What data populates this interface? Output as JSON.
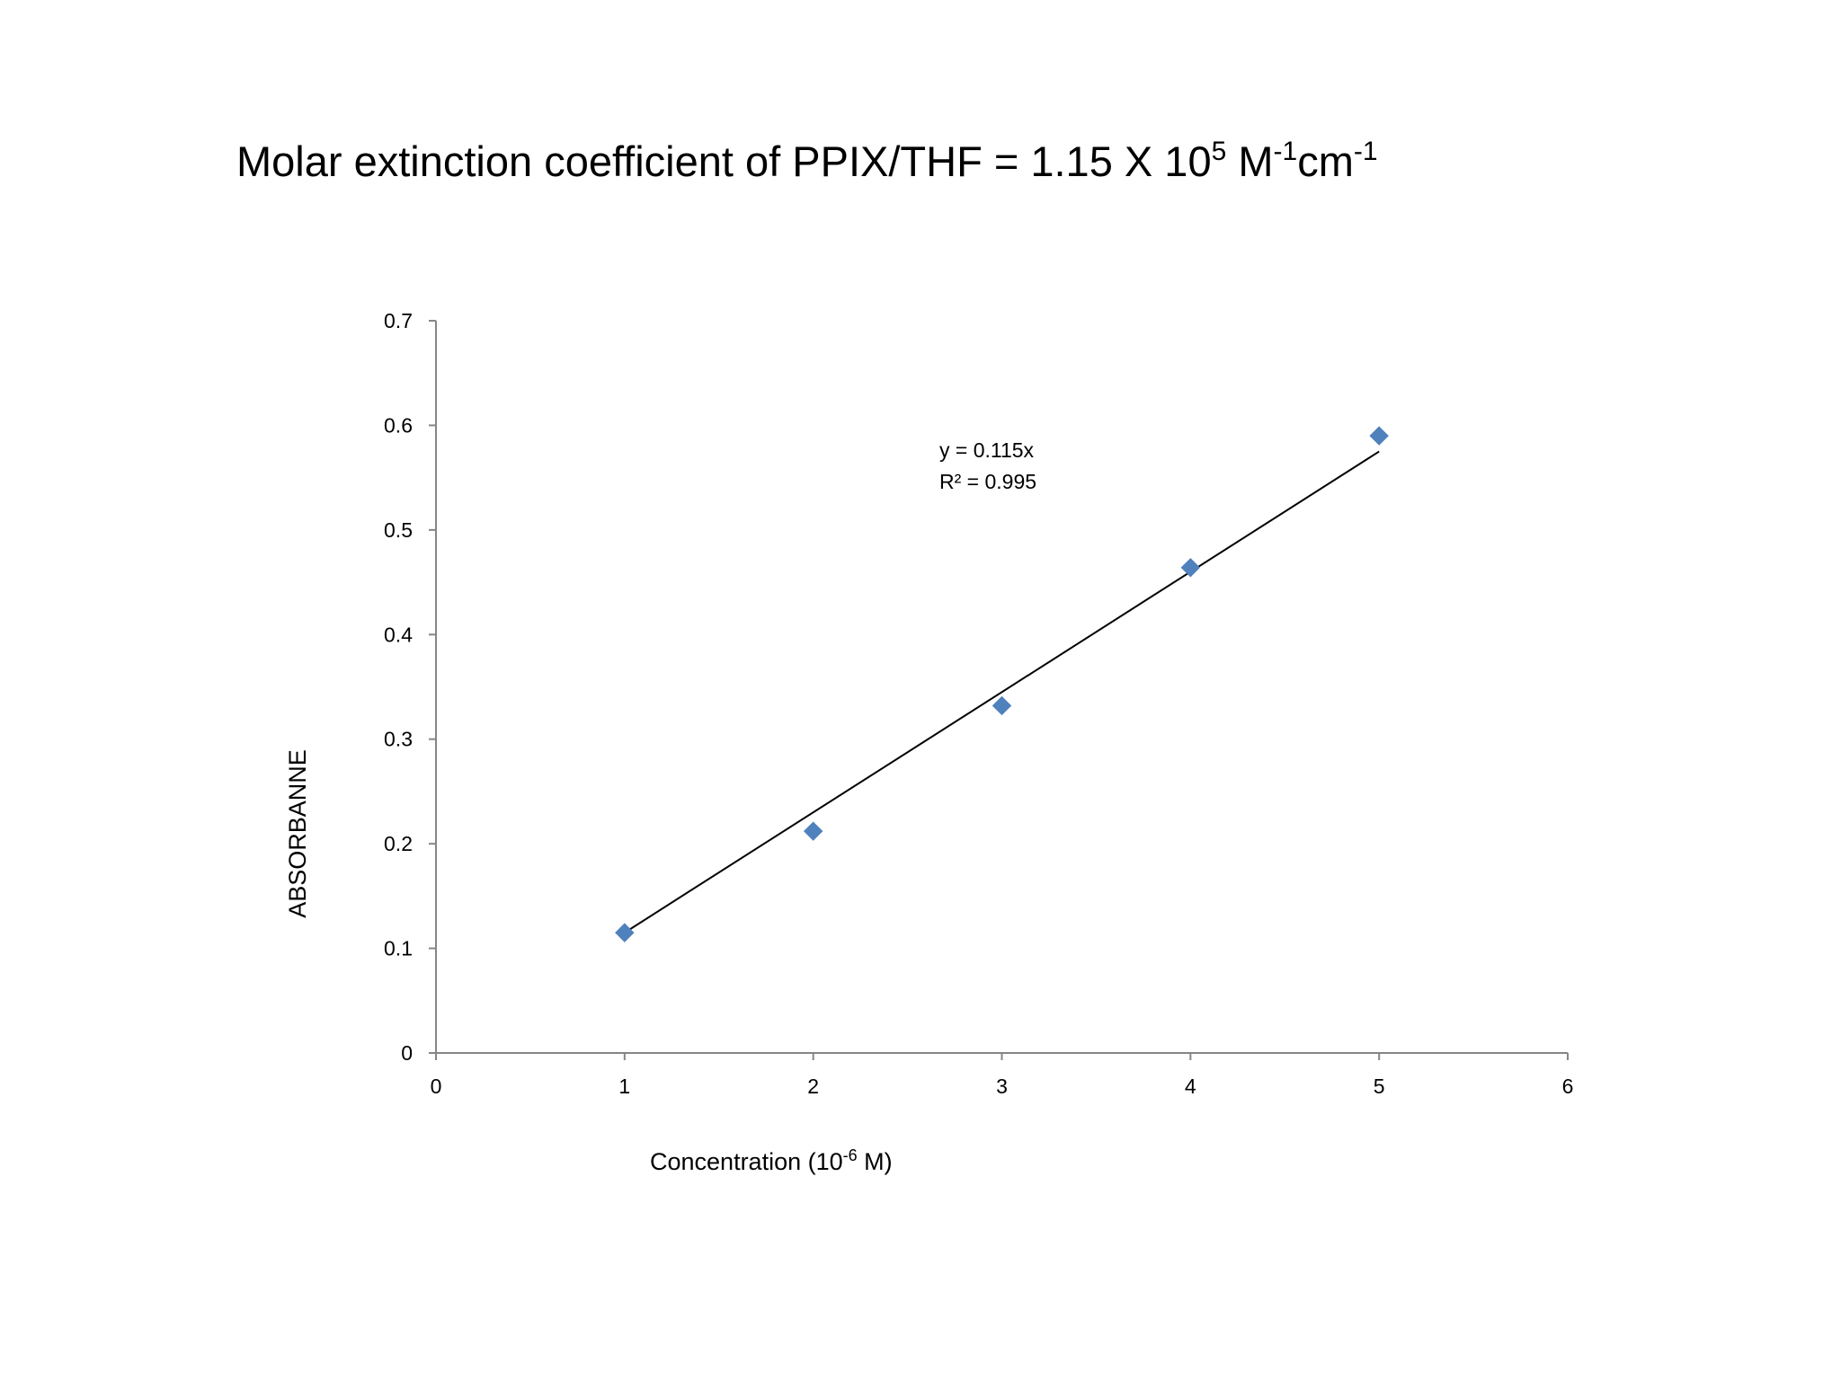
{
  "chart_data": {
    "type": "scatter",
    "title": {
      "text": "Molar extinction coefficient of PPIX/THF = 1.15 X 10",
      "sup1": "5",
      "unit1": " M",
      "sup2": "-1",
      "unit2": "cm",
      "sup3": "-1"
    },
    "xlabel": {
      "text": "Concentration (10",
      "sup": "-6",
      "suffix": " M)"
    },
    "ylabel": "ABSORBANNE",
    "xlim": [
      0,
      6
    ],
    "ylim": [
      0,
      0.7
    ],
    "x_ticks": [
      "0",
      "1",
      "2",
      "3",
      "4",
      "5",
      "6"
    ],
    "y_ticks": [
      "0",
      "0.1",
      "0.2",
      "0.3",
      "0.4",
      "0.5",
      "0.6",
      "0.7"
    ],
    "grid": false,
    "points": {
      "x": [
        1,
        2,
        3,
        4,
        5
      ],
      "y": [
        0.115,
        0.212,
        0.332,
        0.464,
        0.59
      ],
      "color": "#4f81bd",
      "marker": "diamond"
    },
    "trendline": {
      "slope": 0.115,
      "x_range": [
        1,
        5
      ],
      "color": "#000000",
      "equation": "y = 0.115x",
      "r_squared": "R² = 0.995"
    },
    "axis_color": "#868686"
  }
}
